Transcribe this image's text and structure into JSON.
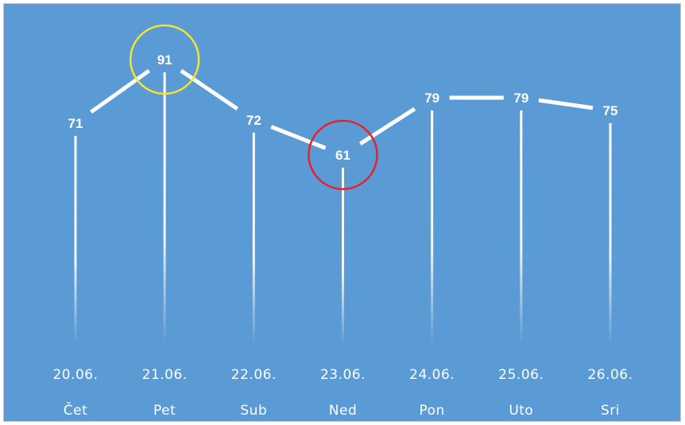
{
  "chart_data": {
    "type": "line",
    "categories": [
      "20.06.",
      "21.06.",
      "22.06.",
      "23.06.",
      "24.06.",
      "25.06.",
      "26.06."
    ],
    "days": [
      "Čet",
      "Pet",
      "Sub",
      "Ned",
      "Pon",
      "Uto",
      "Sri"
    ],
    "values": [
      71,
      91,
      72,
      61,
      79,
      79,
      75
    ],
    "highlights": [
      {
        "category": "21.06.",
        "color": "#f5e52a"
      },
      {
        "category": "23.06.",
        "color": "#e8202a"
      }
    ],
    "colors": {
      "background": "#5b9bd5",
      "line": "#ffffff",
      "drop_line": "#ffffff",
      "text": "#ffffff"
    },
    "grid": false,
    "legend": "none"
  }
}
